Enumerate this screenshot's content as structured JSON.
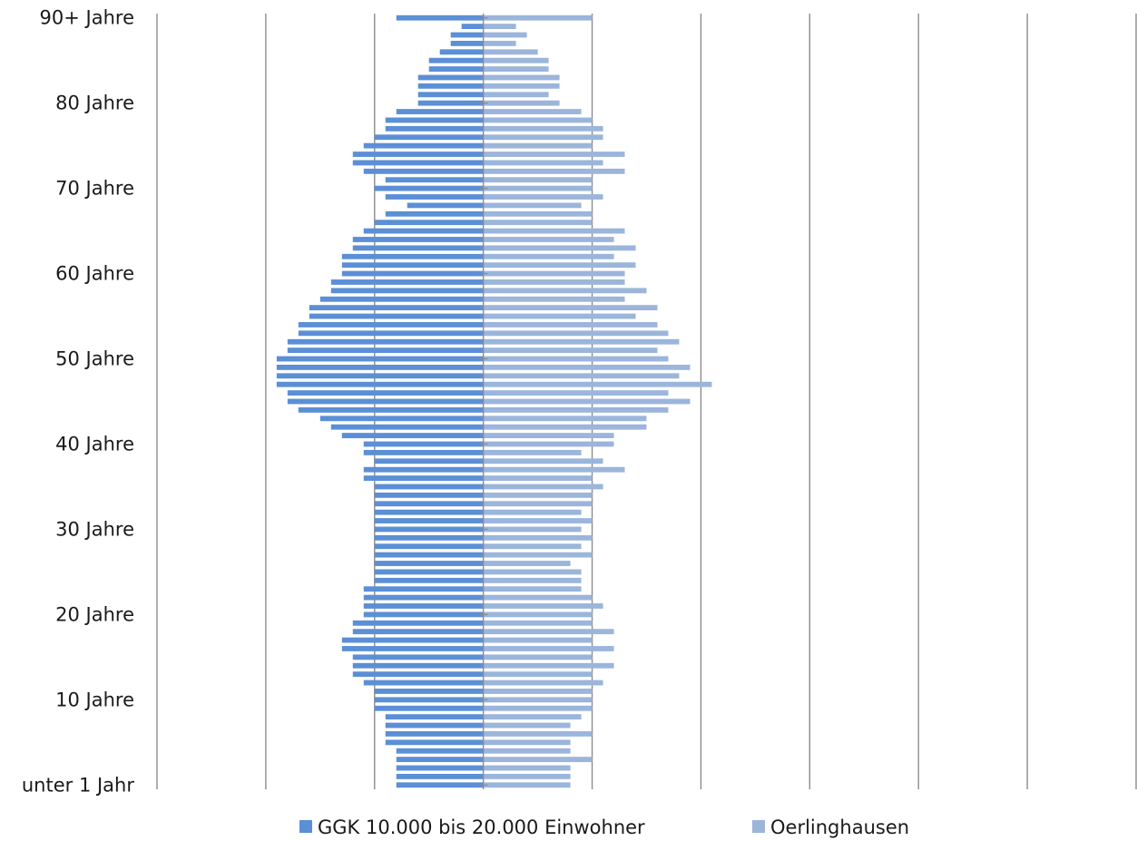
{
  "chart_data": {
    "type": "bar",
    "orientation": "horizontal",
    "layout": "population-pyramid",
    "colors": {
      "left": "#5b8fd6",
      "right": "#9bb5db",
      "gridline": "#8c8c8c"
    },
    "x_range": [
      -3.0,
      6.0
    ],
    "gridlines_at": [
      -3,
      -2,
      -1,
      0,
      1,
      2,
      3,
      4,
      5,
      6
    ],
    "y_tick_labels": [
      {
        "age": 90,
        "label": "90+ Jahre"
      },
      {
        "age": 80,
        "label": "80 Jahre"
      },
      {
        "age": 70,
        "label": "70 Jahre"
      },
      {
        "age": 60,
        "label": "60 Jahre"
      },
      {
        "age": 50,
        "label": "50 Jahre"
      },
      {
        "age": 40,
        "label": "40 Jahre"
      },
      {
        "age": 30,
        "label": "30 Jahre"
      },
      {
        "age": 20,
        "label": "20 Jahre"
      },
      {
        "age": 10,
        "label": "10 Jahre"
      },
      {
        "age": 0,
        "label": "unter 1 Jahr"
      }
    ],
    "legend": [
      {
        "name": "GGK 10.000 bis 20.000 Einwohner",
        "color": "#5b8fd6"
      },
      {
        "name": "Oerlinghausen",
        "color": "#9bb5db"
      }
    ],
    "ages": [
      90,
      89,
      88,
      87,
      86,
      85,
      84,
      83,
      82,
      81,
      80,
      79,
      78,
      77,
      76,
      75,
      74,
      73,
      72,
      71,
      70,
      69,
      68,
      67,
      66,
      65,
      64,
      63,
      62,
      61,
      60,
      59,
      58,
      57,
      56,
      55,
      54,
      53,
      52,
      51,
      50,
      49,
      48,
      47,
      46,
      45,
      44,
      43,
      42,
      41,
      40,
      39,
      38,
      37,
      36,
      35,
      34,
      33,
      32,
      31,
      30,
      29,
      28,
      27,
      26,
      25,
      24,
      23,
      22,
      21,
      20,
      19,
      18,
      17,
      16,
      15,
      14,
      13,
      12,
      11,
      10,
      9,
      8,
      7,
      6,
      5,
      4,
      3,
      2,
      1,
      0
    ],
    "series": [
      {
        "name": "GGK 10.000 bis 20.000 Einwohner",
        "side": "left",
        "values": [
          0.8,
          0.2,
          0.3,
          0.3,
          0.4,
          0.5,
          0.5,
          0.6,
          0.6,
          0.6,
          0.6,
          0.8,
          0.9,
          0.9,
          1.0,
          1.1,
          1.2,
          1.2,
          1.1,
          0.9,
          1.0,
          0.9,
          0.7,
          0.9,
          1.0,
          1.1,
          1.2,
          1.2,
          1.3,
          1.3,
          1.3,
          1.4,
          1.4,
          1.5,
          1.6,
          1.6,
          1.7,
          1.7,
          1.8,
          1.8,
          1.9,
          1.9,
          1.9,
          1.9,
          1.8,
          1.8,
          1.7,
          1.5,
          1.4,
          1.3,
          1.1,
          1.1,
          1.0,
          1.1,
          1.1,
          1.0,
          1.0,
          1.0,
          1.0,
          1.0,
          1.0,
          1.0,
          1.0,
          1.0,
          1.0,
          1.0,
          1.0,
          1.1,
          1.1,
          1.1,
          1.1,
          1.2,
          1.2,
          1.3,
          1.3,
          1.2,
          1.2,
          1.2,
          1.1,
          1.0,
          1.0,
          1.0,
          0.9,
          0.9,
          0.9,
          0.9,
          0.8,
          0.8,
          0.8,
          0.8,
          0.8
        ]
      },
      {
        "name": "Oerlinghausen",
        "side": "right",
        "values": [
          1.0,
          0.3,
          0.4,
          0.3,
          0.5,
          0.6,
          0.6,
          0.7,
          0.7,
          0.6,
          0.7,
          0.9,
          1.0,
          1.1,
          1.1,
          1.0,
          1.3,
          1.1,
          1.3,
          1.0,
          1.0,
          1.1,
          0.9,
          1.0,
          1.0,
          1.3,
          1.2,
          1.4,
          1.2,
          1.4,
          1.3,
          1.3,
          1.5,
          1.3,
          1.6,
          1.4,
          1.6,
          1.7,
          1.8,
          1.6,
          1.7,
          1.9,
          1.8,
          2.1,
          1.7,
          1.9,
          1.7,
          1.5,
          1.5,
          1.2,
          1.2,
          0.9,
          1.1,
          1.3,
          1.0,
          1.1,
          1.0,
          1.0,
          0.9,
          1.0,
          0.9,
          1.0,
          0.9,
          1.0,
          0.8,
          0.9,
          0.9,
          0.9,
          1.0,
          1.1,
          1.0,
          1.0,
          1.2,
          1.0,
          1.2,
          1.0,
          1.2,
          1.0,
          1.1,
          1.0,
          1.0,
          1.0,
          0.9,
          0.8,
          1.0,
          0.8,
          0.8,
          1.0,
          0.8,
          0.8,
          0.8
        ]
      }
    ]
  }
}
